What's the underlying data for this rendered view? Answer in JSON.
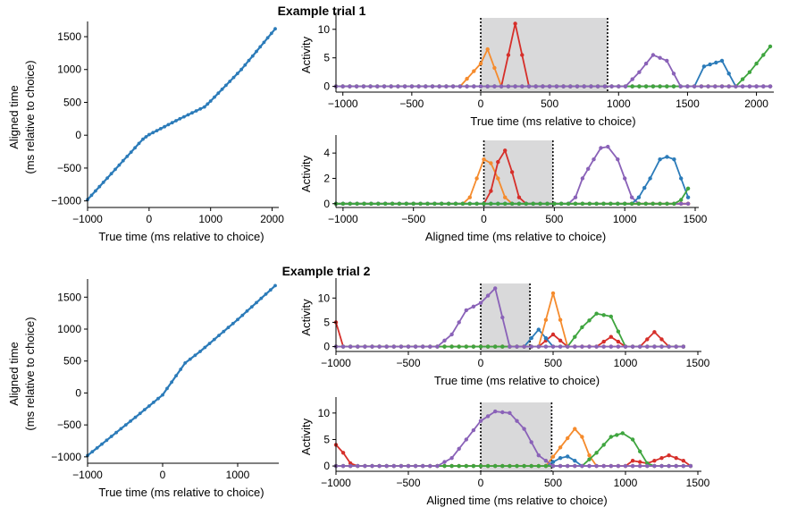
{
  "figure": {
    "title_trial1": "Example trial 1",
    "title_trial2": "Example trial 2"
  },
  "colors": {
    "line": "#2b7bb9",
    "orange": "#f58b2d",
    "red": "#d62f2a",
    "purple": "#8a62b8",
    "blue": "#2b7bb9",
    "green": "#3fa53f",
    "shade": "#d9d9da"
  },
  "chart_data": [
    {
      "id": "t1_mapping",
      "type": "line",
      "xlabel": "True time (ms relative to choice)",
      "ylabel": "Aligned time",
      "ylabel2": "(ms relative to choice)",
      "xlim": [
        -1000,
        2050
      ],
      "ylim": [
        -1100,
        1650
      ],
      "xticks": [
        -1000,
        0,
        1000,
        2000
      ],
      "yticks": [
        -1000,
        -500,
        0,
        500,
        1000,
        1500
      ],
      "series": [
        {
          "color": "blue",
          "points": [
            [
              -1000,
              -980
            ],
            [
              -550,
              -520
            ],
            [
              -100,
              -60
            ],
            [
              0,
              10
            ],
            [
              500,
              250
            ],
            [
              900,
              430
            ],
            [
              1000,
              520
            ],
            [
              1500,
              1000
            ],
            [
              2050,
              1620
            ]
          ]
        }
      ]
    },
    {
      "id": "t1_true",
      "type": "line",
      "xlabel": "True time (ms relative to choice)",
      "ylabel": "Activity",
      "xlim": [
        -1050,
        2100
      ],
      "ylim": [
        -1,
        12
      ],
      "xticks": [
        -1000,
        -500,
        0,
        500,
        1000,
        1500,
        2000
      ],
      "yticks": [
        0,
        5,
        10
      ],
      "shade": [
        0,
        920
      ],
      "series": [
        {
          "color": "orange",
          "points": [
            [
              -1050,
              0
            ],
            [
              -150,
              0
            ],
            [
              0,
              4
            ],
            [
              50,
              6.5
            ],
            [
              150,
              0
            ],
            [
              2100,
              0
            ]
          ]
        },
        {
          "color": "red",
          "points": [
            [
              -1050,
              0
            ],
            [
              150,
              0
            ],
            [
              250,
              11
            ],
            [
              350,
              0
            ],
            [
              2100,
              0
            ]
          ]
        },
        {
          "color": "blue",
          "points": [
            [
              -1050,
              0
            ],
            [
              1550,
              0
            ],
            [
              1620,
              3.5
            ],
            [
              1750,
              4.5
            ],
            [
              1850,
              0
            ],
            [
              2100,
              0
            ]
          ]
        },
        {
          "color": "green",
          "points": [
            [
              -1050,
              0
            ],
            [
              1850,
              0
            ],
            [
              1950,
              2.5
            ],
            [
              2100,
              7
            ]
          ]
        },
        {
          "color": "purple",
          "points": [
            [
              -1050,
              0
            ],
            [
              1050,
              0
            ],
            [
              1150,
              2.5
            ],
            [
              1250,
              5.5
            ],
            [
              1350,
              4.5
            ],
            [
              1450,
              0
            ],
            [
              2100,
              0
            ]
          ]
        }
      ]
    },
    {
      "id": "t1_aligned",
      "type": "line",
      "xlabel": "Aligned time (ms relative to choice)",
      "ylabel": "Activity",
      "xlim": [
        -1050,
        1500
      ],
      "ylim": [
        -0.3,
        5
      ],
      "xticks": [
        -1000,
        -500,
        0,
        500,
        1000,
        1500
      ],
      "yticks": [
        0,
        2,
        4
      ],
      "shade": [
        0,
        490
      ],
      "series": [
        {
          "color": "orange",
          "points": [
            [
              -1050,
              0
            ],
            [
              -150,
              0
            ],
            [
              -100,
              0.5
            ],
            [
              0,
              3.5
            ],
            [
              50,
              3.2
            ],
            [
              100,
              2
            ],
            [
              150,
              0.5
            ],
            [
              200,
              0
            ],
            [
              1450,
              0
            ]
          ]
        },
        {
          "color": "red",
          "points": [
            [
              -1050,
              0
            ],
            [
              0,
              0
            ],
            [
              50,
              1
            ],
            [
              100,
              3.3
            ],
            [
              150,
              4.2
            ],
            [
              200,
              2.5
            ],
            [
              250,
              0.5
            ],
            [
              300,
              0
            ],
            [
              1450,
              0
            ]
          ]
        },
        {
          "color": "purple",
          "points": [
            [
              -1050,
              0
            ],
            [
              600,
              0
            ],
            [
              650,
              0.5
            ],
            [
              700,
              2
            ],
            [
              780,
              3.5
            ],
            [
              830,
              4.4
            ],
            [
              880,
              4.5
            ],
            [
              950,
              3.5
            ],
            [
              1000,
              2
            ],
            [
              1050,
              0.5
            ],
            [
              1100,
              0
            ],
            [
              1450,
              0
            ]
          ]
        },
        {
          "color": "blue",
          "points": [
            [
              -1050,
              0
            ],
            [
              1050,
              0
            ],
            [
              1100,
              0.5
            ],
            [
              1180,
              2
            ],
            [
              1250,
              3.5
            ],
            [
              1300,
              3.7
            ],
            [
              1350,
              3.5
            ],
            [
              1400,
              2
            ],
            [
              1450,
              0.5
            ]
          ]
        },
        {
          "color": "green",
          "points": [
            [
              -1050,
              0
            ],
            [
              1350,
              0
            ],
            [
              1400,
              0.3
            ],
            [
              1450,
              1.2
            ]
          ]
        }
      ]
    },
    {
      "id": "t2_mapping",
      "type": "line",
      "xlabel": "True time (ms relative to choice)",
      "ylabel": "Aligned time",
      "ylabel2": "(ms relative to choice)",
      "xlim": [
        -1000,
        1500
      ],
      "ylim": [
        -1100,
        1700
      ],
      "xticks": [
        -1000,
        0,
        1000
      ],
      "yticks": [
        -1000,
        -500,
        0,
        500,
        1000,
        1500
      ],
      "series": [
        {
          "color": "blue",
          "points": [
            [
              -1000,
              -980
            ],
            [
              -300,
              -320
            ],
            [
              0,
              -30
            ],
            [
              300,
              470
            ],
            [
              500,
              650
            ],
            [
              1000,
              1150
            ],
            [
              1500,
              1680
            ]
          ]
        }
      ]
    },
    {
      "id": "t2_true",
      "type": "line",
      "xlabel": "True time (ms relative to choice)",
      "ylabel": "Activity",
      "xlim": [
        -1000,
        1500
      ],
      "ylim": [
        -1,
        13
      ],
      "xticks": [
        -1000,
        -500,
        0,
        500,
        1000,
        1500
      ],
      "yticks": [
        0,
        5,
        10
      ],
      "shade": [
        0,
        340
      ],
      "series": [
        {
          "color": "red",
          "points": [
            [
              -1000,
              5
            ],
            [
              -950,
              0
            ],
            [
              400,
              0
            ],
            [
              500,
              2.5
            ],
            [
              600,
              0
            ],
            [
              800,
              0
            ],
            [
              900,
              2
            ],
            [
              1000,
              0
            ],
            [
              1100,
              0
            ],
            [
              1200,
              3
            ],
            [
              1300,
              0
            ],
            [
              1400,
              0
            ]
          ]
        },
        {
          "color": "blue",
          "points": [
            [
              -1000,
              0
            ],
            [
              300,
              0
            ],
            [
              400,
              3.5
            ],
            [
              500,
              0
            ],
            [
              1400,
              0
            ]
          ]
        },
        {
          "color": "orange",
          "points": [
            [
              -1000,
              0
            ],
            [
              400,
              0
            ],
            [
              500,
              11
            ],
            [
              600,
              0
            ],
            [
              1400,
              0
            ]
          ]
        },
        {
          "color": "green",
          "points": [
            [
              -1000,
              0
            ],
            [
              600,
              0
            ],
            [
              700,
              4
            ],
            [
              800,
              6.8
            ],
            [
              900,
              6.2
            ],
            [
              1000,
              0
            ],
            [
              1400,
              0
            ]
          ]
        },
        {
          "color": "purple",
          "points": [
            [
              -1000,
              0
            ],
            [
              -300,
              0
            ],
            [
              -200,
              2.5
            ],
            [
              -100,
              7.5
            ],
            [
              0,
              9
            ],
            [
              100,
              12
            ],
            [
              200,
              0
            ],
            [
              1400,
              0
            ]
          ]
        }
      ]
    },
    {
      "id": "t2_aligned",
      "type": "line",
      "xlabel": "Aligned time (ms relative to choice)",
      "ylabel": "Activity",
      "xlim": [
        -1000,
        1500
      ],
      "ylim": [
        -1,
        12
      ],
      "xticks": [
        -1000,
        -500,
        0,
        500,
        1000,
        1500
      ],
      "yticks": [
        0,
        5,
        10
      ],
      "shade": [
        0,
        490
      ],
      "series": [
        {
          "color": "red",
          "points": [
            [
              -1000,
              4
            ],
            [
              -950,
              2.5
            ],
            [
              -900,
              0.5
            ],
            [
              -850,
              0
            ],
            [
              1000,
              0
            ],
            [
              1050,
              1
            ],
            [
              1150,
              0.5
            ],
            [
              1250,
              1.5
            ],
            [
              1300,
              2
            ],
            [
              1400,
              1
            ],
            [
              1450,
              0
            ]
          ]
        },
        {
          "color": "blue",
          "points": [
            [
              -1000,
              0
            ],
            [
              450,
              0
            ],
            [
              550,
              1.5
            ],
            [
              600,
              1.8
            ],
            [
              650,
              1
            ],
            [
              700,
              0
            ],
            [
              1450,
              0
            ]
          ]
        },
        {
          "color": "orange",
          "points": [
            [
              -1000,
              0
            ],
            [
              450,
              0
            ],
            [
              550,
              3.5
            ],
            [
              650,
              7
            ],
            [
              700,
              5.5
            ],
            [
              750,
              2
            ],
            [
              800,
              0
            ],
            [
              1450,
              0
            ]
          ]
        },
        {
          "color": "green",
          "points": [
            [
              -1000,
              0
            ],
            [
              700,
              0
            ],
            [
              800,
              2.5
            ],
            [
              900,
              5.5
            ],
            [
              980,
              6.2
            ],
            [
              1050,
              5
            ],
            [
              1150,
              0.5
            ],
            [
              1200,
              0
            ],
            [
              1450,
              0
            ]
          ]
        },
        {
          "color": "purple",
          "points": [
            [
              -1000,
              0
            ],
            [
              -300,
              0
            ],
            [
              -200,
              1.5
            ],
            [
              -100,
              5
            ],
            [
              0,
              8.5
            ],
            [
              100,
              10.3
            ],
            [
              200,
              10
            ],
            [
              300,
              7
            ],
            [
              400,
              2
            ],
            [
              500,
              0
            ],
            [
              1450,
              0
            ]
          ]
        }
      ]
    }
  ]
}
